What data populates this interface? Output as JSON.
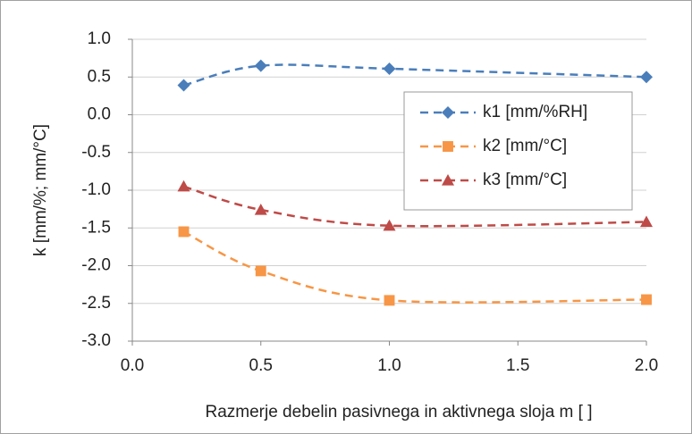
{
  "chart_data": {
    "type": "line",
    "x_label": "Razmerje debelin pasivnega in aktivnega sloja m [ ]",
    "y_label": "k [mm/%; mm/°C]",
    "x": [
      0.2,
      0.5,
      1.0,
      2.0
    ],
    "series": [
      {
        "name": "k1 [mm/%RH]",
        "color": "#4a7ebb",
        "marker": "diamond",
        "values": [
          0.39,
          0.65,
          0.61,
          0.5
        ]
      },
      {
        "name": "k2 [mm/°C]",
        "color": "#f79646",
        "marker": "square",
        "values": [
          -1.55,
          -2.07,
          -2.46,
          -2.45
        ]
      },
      {
        "name": "k3 [mm/°C]",
        "color": "#be4b48",
        "marker": "triangle",
        "values": [
          -0.95,
          -1.26,
          -1.47,
          -1.42
        ]
      }
    ],
    "xlim": [
      0,
      2
    ],
    "xticks": [
      {
        "value": 0,
        "label": "0.0"
      },
      {
        "value": 0.5,
        "label": "0.5"
      },
      {
        "value": 1,
        "label": "1.0"
      },
      {
        "value": 1.5,
        "label": "1.5"
      },
      {
        "value": 2,
        "label": "2.0"
      }
    ],
    "ylim": [
      -3,
      1
    ],
    "yticks": [
      {
        "value": -3,
        "label": "-3.0"
      },
      {
        "value": -2.5,
        "label": "-2.5"
      },
      {
        "value": -2,
        "label": "-2.0"
      },
      {
        "value": -1.5,
        "label": "-1.5"
      },
      {
        "value": -1,
        "label": "-1.0"
      },
      {
        "value": -0.5,
        "label": "-0.5"
      },
      {
        "value": 0,
        "label": "0.0"
      },
      {
        "value": 0.5,
        "label": "0.5"
      },
      {
        "value": 1,
        "label": "1.0"
      }
    ],
    "grid": true,
    "legend": "upper right"
  }
}
